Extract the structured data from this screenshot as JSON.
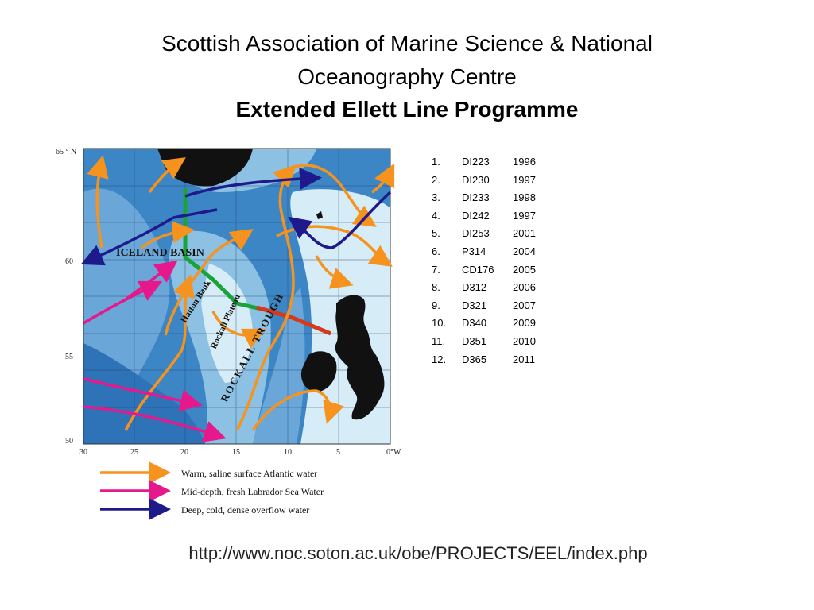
{
  "title": {
    "line1": "Scottish Association of Marine Science & National",
    "line2": "Oceanography Centre",
    "line3": "Extended Ellett Line Programme"
  },
  "map": {
    "lat_labels": [
      "65 ° N",
      "60",
      "55",
      "50"
    ],
    "lon_labels": [
      "30",
      "25",
      "20",
      "15",
      "10",
      "5",
      "0°W"
    ],
    "place_labels": {
      "iceland_basin": "ICELAND BASIN",
      "hatton_bank": "Hatton Bank",
      "rockall_plateau": "Rockall Plateau",
      "rockall_trough": "ROCKALL TROUGH"
    },
    "legend": [
      {
        "label": "Warm, saline surface Atlantic water",
        "color": "#f5931e"
      },
      {
        "label": "Mid-depth, fresh Labrador Sea Water",
        "color": "#e6198c"
      },
      {
        "label": "Deep, cold, dense overflow water",
        "color": "#1e1a8c"
      }
    ],
    "colors": {
      "ocean_deep": "#3d86c6",
      "ocean_mid": "#8cc1e3",
      "ocean_shallow": "#d6ecf7",
      "land": "#111111",
      "section_green": "#1aa33a",
      "section_red": "#d9361c"
    }
  },
  "cruises": [
    {
      "n": "1.",
      "code": "DI223",
      "year": "1996"
    },
    {
      "n": "2.",
      "code": "DI230",
      "year": "1997"
    },
    {
      "n": "3.",
      "code": "DI233",
      "year": "1998"
    },
    {
      "n": "4.",
      "code": "DI242",
      "year": "1997"
    },
    {
      "n": "5.",
      "code": "DI253",
      "year": "2001"
    },
    {
      "n": "6.",
      "code": "P314",
      "year": "2004"
    },
    {
      "n": "7.",
      "code": "CD176",
      "year": " 2005"
    },
    {
      "n": "8.",
      "code": "D312",
      "year": "2006"
    },
    {
      "n": "9.",
      "code": "D321",
      "year": "2007"
    },
    {
      "n": "10.",
      "code": "D340",
      "year": "2009"
    },
    {
      "n": "11.",
      "code": "D351",
      "year": "2010"
    },
    {
      "n": "12.",
      "code": "D365",
      "year": "2011"
    }
  ],
  "url": "http://www.noc.soton.ac.uk/obe/PROJECTS/EEL/index.php"
}
